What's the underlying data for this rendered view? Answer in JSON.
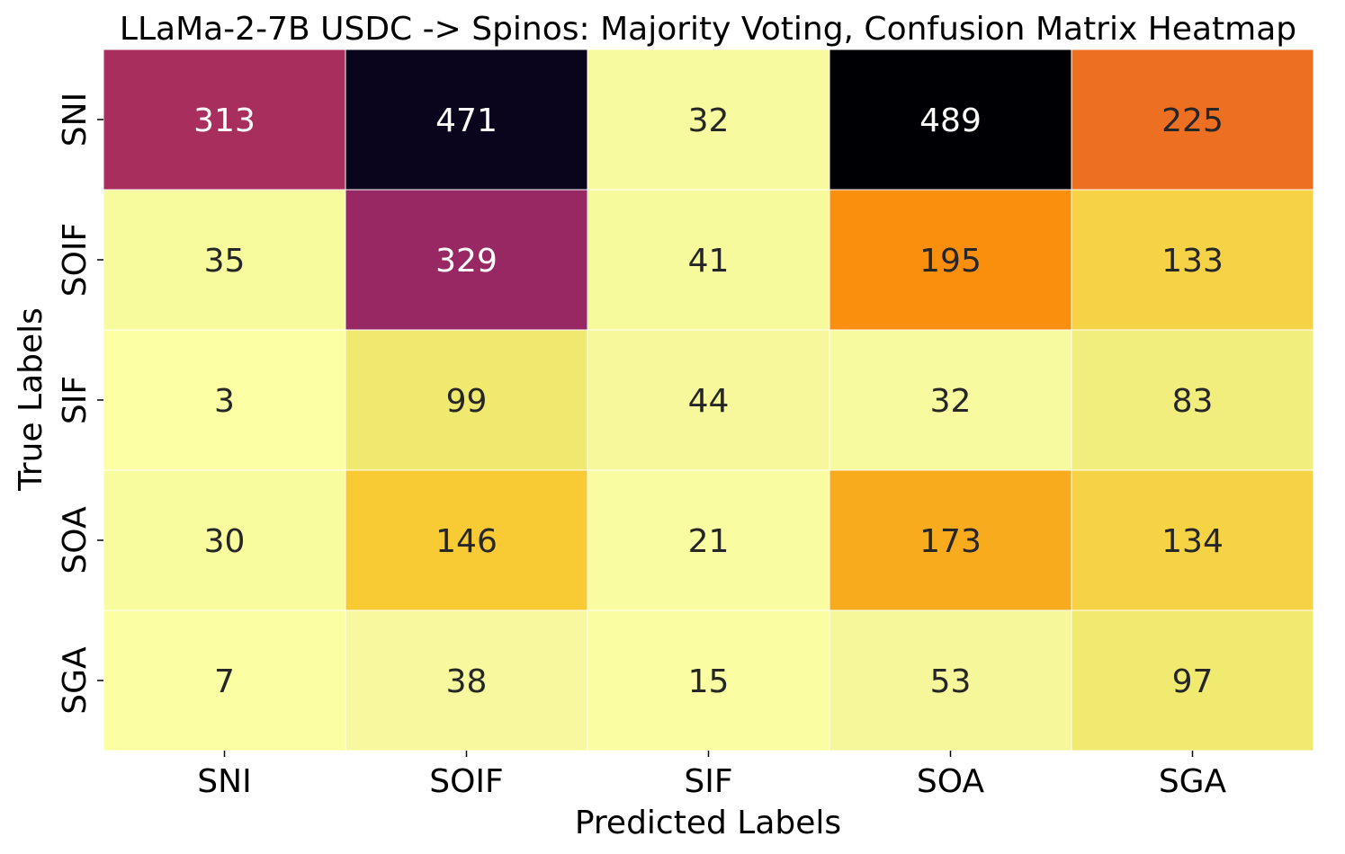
{
  "chart_data": {
    "type": "heatmap",
    "title": "LLaMa-2-7B USDC -> Spinos: Majority Voting, Confusion Matrix Heatmap",
    "xlabel": "Predicted Labels",
    "ylabel": "True Labels",
    "x_categories": [
      "SNI",
      "SOIF",
      "SIF",
      "SOA",
      "SGA"
    ],
    "y_categories": [
      "SNI",
      "SOIF",
      "SIF",
      "SOA",
      "SGA"
    ],
    "values": [
      [
        313,
        471,
        32,
        489,
        225
      ],
      [
        35,
        329,
        41,
        195,
        133
      ],
      [
        3,
        99,
        44,
        32,
        83
      ],
      [
        30,
        146,
        21,
        173,
        134
      ],
      [
        7,
        38,
        15,
        53,
        97
      ]
    ],
    "colormap": "inferno_r",
    "annotated": true,
    "colorbar": false
  }
}
